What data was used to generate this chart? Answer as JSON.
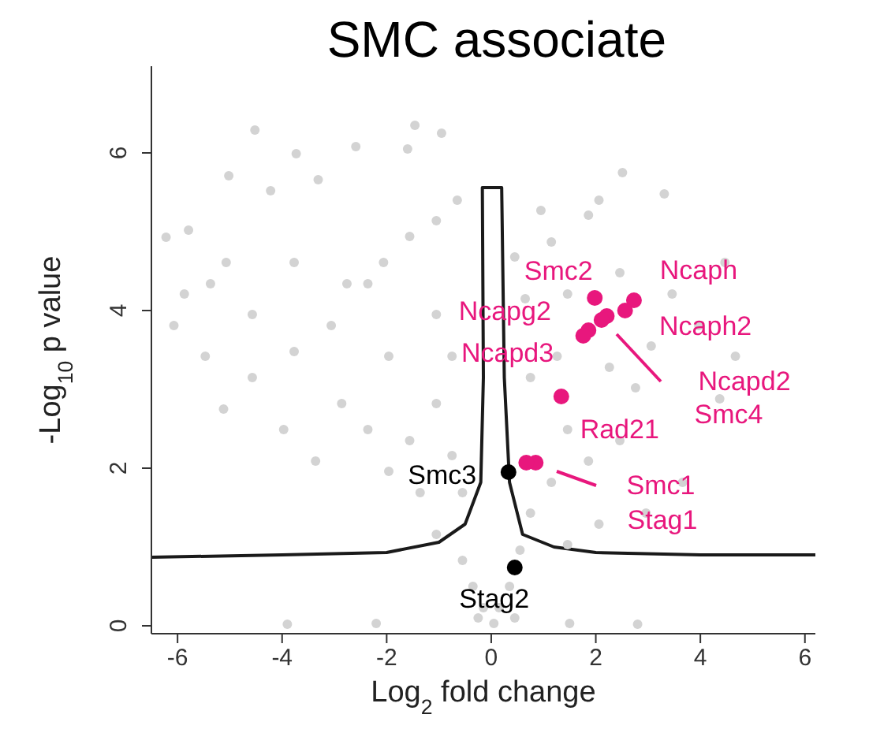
{
  "chart_data": {
    "type": "scatter",
    "title": "SMC associate",
    "xlabel": "Log$_{2}$ fold change",
    "ylabel": "-Log$_{10}$ p value",
    "xlim": [
      -6.5,
      6.2
    ],
    "ylim": [
      -0.1,
      7.1
    ],
    "xticks": [
      -6,
      -4,
      -2,
      0,
      2,
      4,
      6
    ],
    "yticks": [
      0,
      2,
      4,
      6
    ],
    "grid": false,
    "legend": false,
    "marker": "circle",
    "series": [
      {
        "color": "#d3d3d3",
        "x": [
          -4.52,
          -1.46,
          -0.95,
          -2.59,
          -3.73,
          -5.02,
          -1.6,
          2.51,
          3.31,
          -3.31,
          -4.22,
          -6.22,
          -5.79,
          -6.07,
          -5.87,
          -5.12,
          -5.47,
          -4.57,
          -3.77,
          -3.06,
          -2.36,
          -2.06,
          -1.56,
          -1.05,
          -0.65,
          -2.86,
          -2.36,
          -1.96,
          -1.36,
          -1.56,
          -1.05,
          -0.75,
          -1.05,
          -1.96,
          -3.36,
          -3.97,
          -1.05,
          -0.55,
          -0.35,
          -0.15,
          0.15,
          0.35,
          0.55,
          0.75,
          1.15,
          1.46,
          1.26,
          1.46,
          1.15,
          1.86,
          2.06,
          0.95,
          0.45,
          0.65,
          0.75,
          2.26,
          2.76,
          3.06,
          3.46,
          3.97,
          4.67,
          4.37,
          2.46,
          1.86,
          3.66,
          2.96,
          2.06,
          1.46,
          0.05,
          -0.25,
          0.45,
          -3.9,
          -2.2,
          1.5,
          2.8,
          -5.37,
          -4.57,
          -5.07,
          -0.55,
          -0.75,
          -2.76,
          -3.77,
          2.46,
          4.47
        ],
        "values": [
          6.29,
          6.35,
          6.25,
          6.08,
          5.99,
          5.71,
          6.05,
          5.75,
          5.48,
          5.66,
          5.52,
          4.93,
          5.02,
          3.81,
          4.21,
          2.75,
          3.42,
          3.15,
          3.48,
          3.81,
          4.34,
          4.61,
          4.94,
          5.14,
          5.4,
          2.82,
          2.49,
          1.96,
          1.69,
          2.35,
          2.82,
          3.42,
          3.95,
          3.42,
          2.09,
          2.49,
          1.16,
          0.83,
          0.5,
          0.23,
          0.23,
          0.5,
          0.96,
          1.43,
          1.82,
          2.49,
          3.42,
          4.21,
          4.87,
          5.21,
          5.4,
          5.27,
          4.68,
          4.15,
          3.15,
          3.28,
          3.02,
          3.55,
          4.21,
          3.81,
          3.42,
          2.88,
          2.35,
          2.09,
          1.82,
          1.43,
          1.29,
          1.03,
          0.03,
          0.1,
          0.1,
          0.02,
          0.03,
          0.03,
          0.02,
          4.34,
          3.95,
          4.61,
          1.69,
          2.16,
          4.34,
          4.61,
          4.48,
          4.61
        ]
      },
      {
        "type": "line",
        "marker": "none",
        "color": "#1a1a1a",
        "x": [
          -6.5,
          -4,
          -2,
          -1,
          -0.5,
          -0.2,
          -0.15,
          -0.17,
          0.2,
          0.25,
          0.35,
          0.6,
          1.2,
          2,
          4,
          6.2
        ],
        "values": [
          0.87,
          0.9,
          0.93,
          1.06,
          1.29,
          1.82,
          3.15,
          5.56,
          5.56,
          3.15,
          1.82,
          1.16,
          1.0,
          0.93,
          0.9,
          0.9
        ]
      },
      {
        "color": "#e8177d",
        "x": [
          1.98,
          2.73,
          1.86,
          2.56,
          1.76,
          2.21,
          2.11,
          1.34,
          0.85,
          0.67
        ],
        "values": [
          4.16,
          4.13,
          3.75,
          4.0,
          3.68,
          3.93,
          3.88,
          2.91,
          2.07,
          2.07
        ]
      },
      {
        "color": "#000000",
        "x": [
          0.33,
          0.45
        ],
        "values": [
          1.95,
          0.74
        ]
      }
    ],
    "annotations": [
      {
        "text": "Smc2",
        "x": 1.98,
        "y": 4.16
      },
      {
        "text": "Ncaph",
        "x": 2.73,
        "y": 4.13
      },
      {
        "text": "Ncapg2",
        "x": 1.86,
        "y": 3.75
      },
      {
        "text": "Ncaph2",
        "x": 2.56,
        "y": 4.0
      },
      {
        "text": "Ncapd3",
        "x": 1.76,
        "y": 3.68
      },
      "Ncapd2",
      "Smc4",
      {
        "text": "Rad21",
        "x": 1.34,
        "y": 2.91
      },
      {
        "text": "Smc3",
        "x": 0.33,
        "y": 1.95
      },
      "Smc1",
      "Stag1",
      {
        "text": "Stag2",
        "x": 0.45,
        "y": 0.74
      }
    ]
  }
}
